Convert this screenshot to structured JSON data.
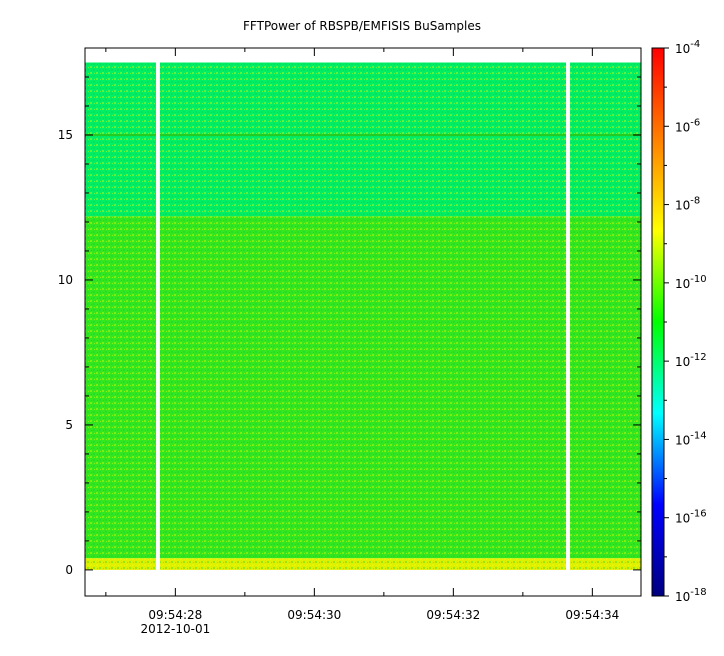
{
  "chart_data": {
    "type": "heatmap",
    "title": "FFTPower of RBSPB/EMFISIS  BuSamples",
    "x_axis": {
      "range": [
        "09:54:26.7",
        "09:54:34.7"
      ],
      "ticks": [
        {
          "label": "09:54:28",
          "sublabel": "2012-10-01"
        },
        {
          "label": "09:54:30",
          "sublabel": ""
        },
        {
          "label": "09:54:32",
          "sublabel": ""
        },
        {
          "label": "09:54:34",
          "sublabel": ""
        }
      ]
    },
    "y_axis": {
      "range": [
        -0.9,
        18.0
      ],
      "ticks": [
        0,
        5,
        10,
        15
      ],
      "tick_labels": [
        "0",
        "5",
        "10",
        "15"
      ]
    },
    "colorbar": {
      "scale": "log",
      "range_exp": [
        -18,
        -4
      ],
      "tick_exponents": [
        -4,
        -6,
        -8,
        -10,
        -12,
        -14,
        -16,
        -18
      ],
      "base_label": "10",
      "colormap": [
        "#000080",
        "#0000ff",
        "#00ffff",
        "#00ff00",
        "#ffff00",
        "#ff8000",
        "#ff0000"
      ]
    },
    "data_extent": {
      "y_min": 0.0,
      "y_max": 17.5
    },
    "bands": [
      {
        "y_from": 12.2,
        "y_to": 17.5,
        "log_power": -11.6,
        "color": "#00ee66"
      },
      {
        "y_from": 0.4,
        "y_to": 12.2,
        "log_power": -10.4,
        "color": "#33e61f"
      },
      {
        "y_from": 0.0,
        "y_to": 0.4,
        "log_power": -9.0,
        "color": "#ddf000"
      }
    ],
    "line_feature": {
      "y": 15.0,
      "color": "#22cc22"
    },
    "data_gaps_at_sec": [
      27.75,
      33.65
    ]
  }
}
